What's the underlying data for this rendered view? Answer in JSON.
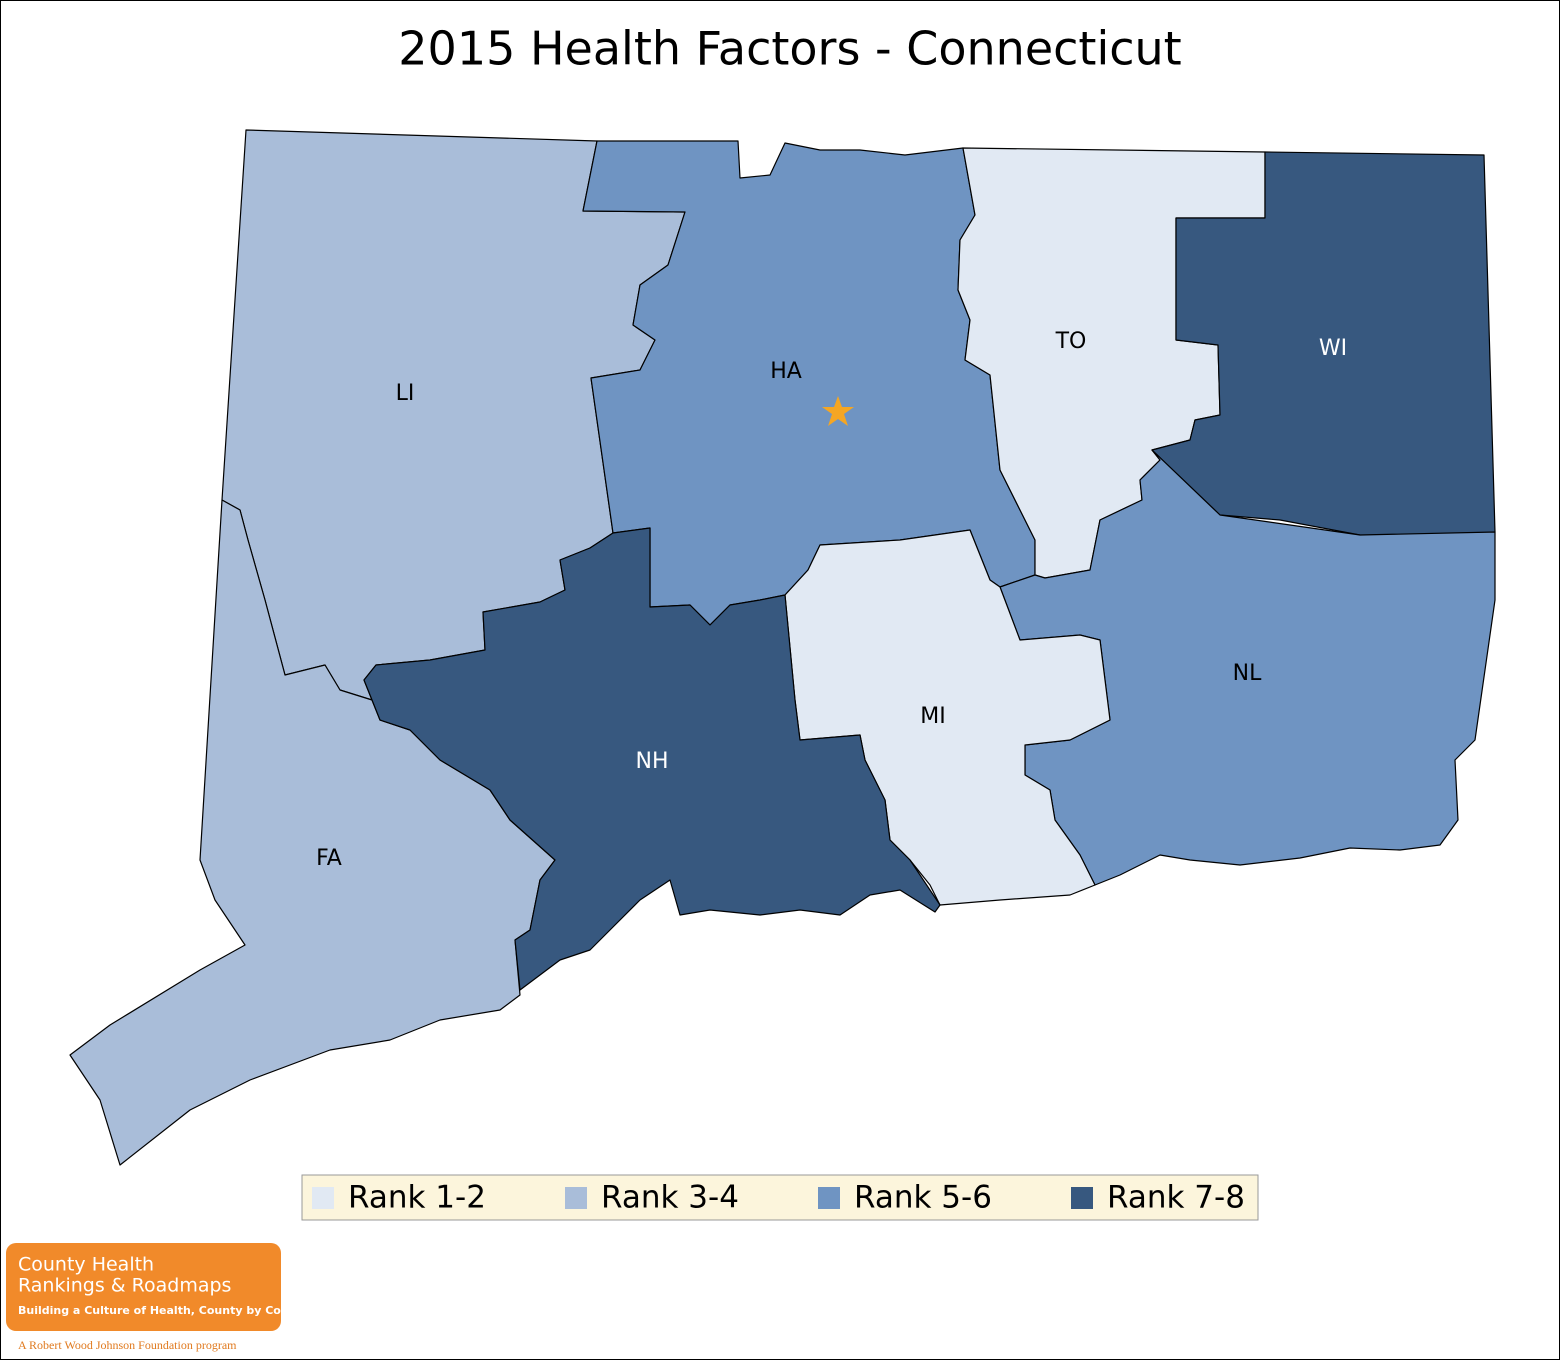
{
  "map": {
    "title": "2015 Health Factors - Connecticut",
    "counties": [
      {
        "label": "LI",
        "color": "#a9bdd9"
      },
      {
        "label": "FA",
        "color": "#a9bdd9"
      },
      {
        "label": "HA",
        "color": "#6f94c2"
      },
      {
        "label": "TO",
        "color": "#e1e9f3"
      },
      {
        "label": "WI",
        "color": "#37587f"
      },
      {
        "label": "NL",
        "color": "#6f94c2"
      },
      {
        "label": "MI",
        "color": "#e1e9f3"
      },
      {
        "label": "NH",
        "color": "#37587f"
      }
    ],
    "legend": [
      {
        "label": "Rank 1-2",
        "color": "#e1e9f3"
      },
      {
        "label": "Rank 3-4",
        "color": "#a9bdd9"
      },
      {
        "label": "Rank 5-6",
        "color": "#6f94c2"
      },
      {
        "label": "Rank 7-8",
        "color": "#37587f"
      }
    ]
  },
  "logo": {
    "line1": "County Health",
    "line2": "Rankings & Roadmaps",
    "tagline": "Building a Culture of Health, County by County",
    "program": "A Robert Wood Johnson Foundation program"
  }
}
